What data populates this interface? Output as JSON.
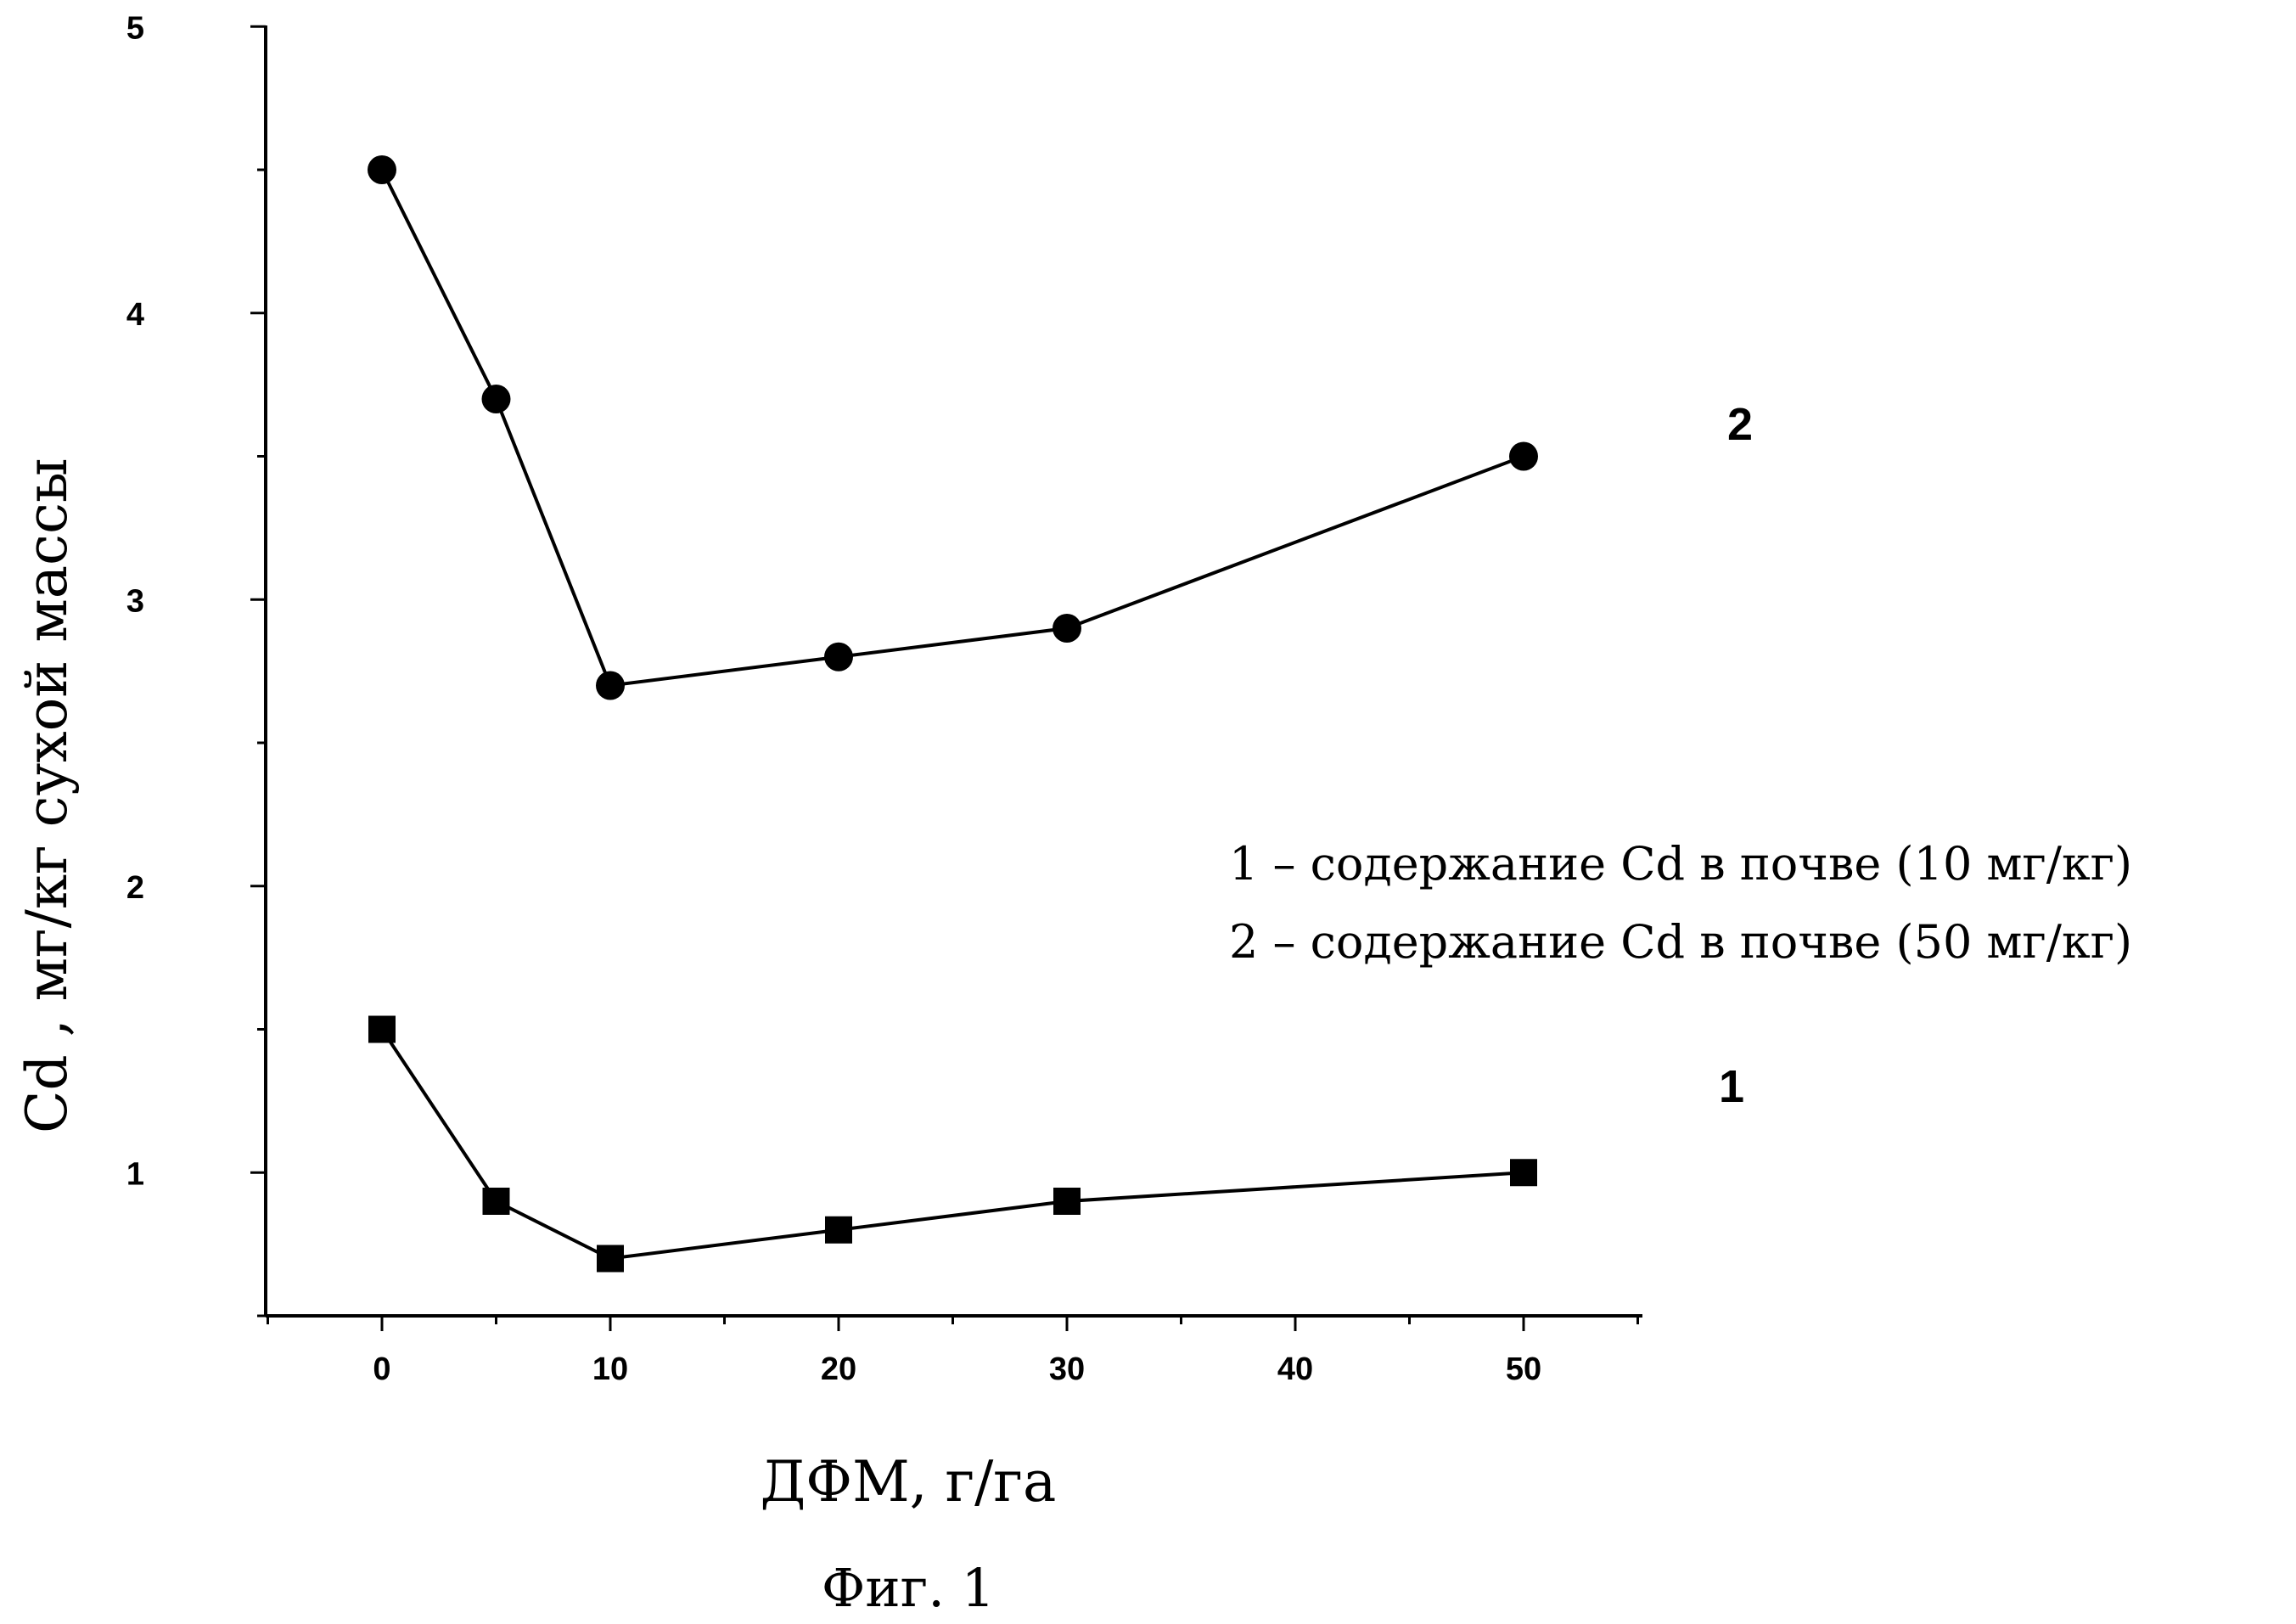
{
  "chart_data": {
    "type": "line",
    "xlabel": "ДФМ, г/га",
    "ylabel": "Cd , мг/кг сухой массы",
    "caption": "Фиг. 1",
    "xlim": [
      -5,
      55
    ],
    "ylim": [
      0.5,
      5
    ],
    "x_ticks": [
      0,
      10,
      20,
      30,
      40,
      50
    ],
    "x_tick_labels": [
      "0",
      "10",
      "20",
      "30",
      "40",
      "50"
    ],
    "y_ticks": [
      1,
      2,
      3,
      4,
      5
    ],
    "y_tick_labels": [
      "1",
      "2",
      "3",
      "4",
      "5"
    ],
    "series": [
      {
        "name": "1",
        "marker": "square",
        "x": [
          0,
          5,
          10,
          20,
          30,
          50
        ],
        "y": [
          1.5,
          0.9,
          0.7,
          0.8,
          0.9,
          1.0
        ]
      },
      {
        "name": "2",
        "marker": "circle",
        "x": [
          0,
          5,
          10,
          20,
          30,
          50
        ],
        "y": [
          4.5,
          3.7,
          2.7,
          2.8,
          2.9,
          3.5
        ]
      }
    ],
    "legend": [
      "1 – содержание Cd в почве (10 мг/кг)",
      "2 – содержание Cd в почве (50 мг/кг)"
    ],
    "grid": false
  }
}
